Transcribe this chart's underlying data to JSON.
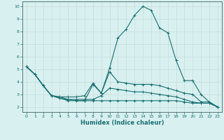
{
  "xlabel": "Humidex (Indice chaleur)",
  "main_x": [
    0,
    1,
    2,
    3,
    4,
    5,
    6,
    7,
    8,
    9,
    10,
    11,
    12,
    13,
    14,
    15,
    16,
    17,
    18,
    19,
    20,
    21,
    22,
    23
  ],
  "main_y": [
    5.2,
    4.6,
    3.7,
    2.9,
    2.8,
    2.6,
    2.5,
    2.5,
    3.8,
    3.1,
    5.1,
    7.5,
    8.2,
    9.3,
    10.0,
    9.7,
    8.3,
    7.9,
    5.7,
    4.1,
    4.1,
    3.0,
    2.4,
    2.0
  ],
  "line2_x": [
    0,
    1,
    2,
    3,
    4,
    5,
    6,
    7,
    8,
    9,
    10,
    11,
    12,
    13,
    14,
    15,
    16,
    17,
    18,
    19,
    20,
    21,
    22,
    23
  ],
  "line2_y": [
    5.2,
    4.6,
    3.7,
    2.9,
    2.8,
    2.8,
    2.8,
    2.9,
    3.9,
    3.1,
    4.8,
    4.0,
    3.9,
    3.8,
    3.8,
    3.8,
    3.7,
    3.5,
    3.3,
    3.1,
    3.0,
    2.4,
    2.4,
    2.0
  ],
  "line3_x": [
    0,
    1,
    2,
    3,
    4,
    5,
    6,
    7,
    8,
    9,
    10,
    11,
    12,
    13,
    14,
    15,
    16,
    17,
    18,
    19,
    20,
    21,
    22,
    23
  ],
  "line3_y": [
    5.2,
    4.6,
    3.7,
    2.9,
    2.7,
    2.6,
    2.6,
    2.6,
    2.6,
    2.9,
    3.5,
    3.4,
    3.3,
    3.2,
    3.2,
    3.1,
    3.0,
    2.9,
    2.8,
    2.6,
    2.4,
    2.3,
    2.3,
    2.0
  ],
  "line4_x": [
    0,
    1,
    2,
    3,
    4,
    5,
    6,
    7,
    8,
    9,
    10,
    11,
    12,
    13,
    14,
    15,
    16,
    17,
    18,
    19,
    20,
    21,
    22,
    23
  ],
  "line4_y": [
    5.2,
    4.6,
    3.7,
    2.9,
    2.7,
    2.5,
    2.5,
    2.5,
    2.5,
    2.5,
    2.5,
    2.5,
    2.5,
    2.5,
    2.5,
    2.5,
    2.5,
    2.5,
    2.5,
    2.4,
    2.3,
    2.3,
    2.3,
    2.0
  ],
  "line_color": "#1a7070",
  "bg_color": "#d8f0f0",
  "grid_color": "#c4dcdc",
  "ylim": [
    1.6,
    10.4
  ],
  "xlim": [
    -0.5,
    23.5
  ],
  "yticks": [
    2,
    3,
    4,
    5,
    6,
    7,
    8,
    9,
    10
  ],
  "xticks": [
    0,
    1,
    2,
    3,
    4,
    5,
    6,
    7,
    8,
    9,
    10,
    11,
    12,
    13,
    14,
    15,
    16,
    17,
    18,
    19,
    20,
    21,
    22,
    23
  ]
}
